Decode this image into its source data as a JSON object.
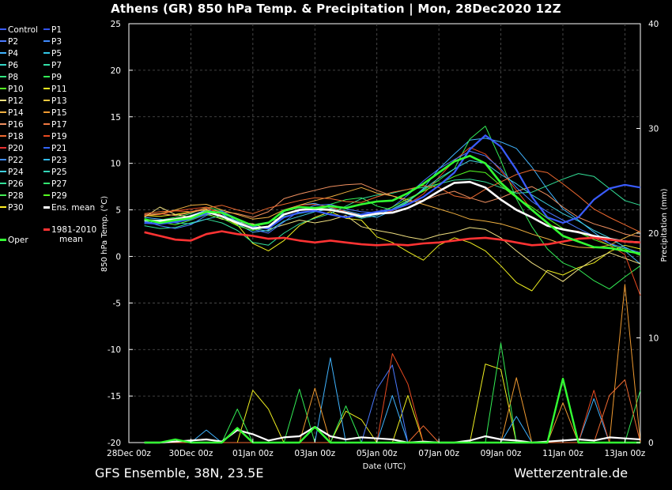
{
  "title": "Athens  (GR)  850 hPa Temp. & Precipitation | Mon, 28Dec2020 12Z",
  "footer_left": "GFS Ensemble, 38N, 23.5E",
  "footer_right": "Wetterzentrale.de",
  "legend": [
    {
      "label": "Control",
      "color": "#3a5cff"
    },
    {
      "label": "P1",
      "color": "#3355ee"
    },
    {
      "label": "P2",
      "color": "#4a7aff"
    },
    {
      "label": "P3",
      "color": "#3f8cff"
    },
    {
      "label": "P4",
      "color": "#40b4ff"
    },
    {
      "label": "P5",
      "color": "#33c8e8"
    },
    {
      "label": "P6",
      "color": "#33d6c8"
    },
    {
      "label": "P7",
      "color": "#33e0a8"
    },
    {
      "label": "P8",
      "color": "#33e880"
    },
    {
      "label": "P9",
      "color": "#33ee55"
    },
    {
      "label": "P10",
      "color": "#55ff22"
    },
    {
      "label": "P11",
      "color": "#f0f020"
    },
    {
      "label": "P12",
      "color": "#f0e080"
    },
    {
      "label": "P13",
      "color": "#f0c840"
    },
    {
      "label": "P14",
      "color": "#f0b040"
    },
    {
      "label": "P15",
      "color": "#f09a30"
    },
    {
      "label": "P16",
      "color": "#f09060"
    },
    {
      "label": "P17",
      "color": "#f07840"
    },
    {
      "label": "P18",
      "color": "#f06a30"
    },
    {
      "label": "P19",
      "color": "#e84a20"
    },
    {
      "label": "P20",
      "color": "#e83030"
    },
    {
      "label": "P21",
      "color": "#3366ff"
    },
    {
      "label": "P22",
      "color": "#3f8cff"
    },
    {
      "label": "P23",
      "color": "#33bbee"
    },
    {
      "label": "P24",
      "color": "#40d0e0"
    },
    {
      "label": "P25",
      "color": "#33d6b8"
    },
    {
      "label": "P26",
      "color": "#33e098"
    },
    {
      "label": "P27",
      "color": "#33e870"
    },
    {
      "label": "P28",
      "color": "#44ee55"
    },
    {
      "label": "P29",
      "color": "#55ff22"
    },
    {
      "label": "P30",
      "color": "#ffee22"
    },
    {
      "label": "Ens. mean",
      "color": "#ffffff"
    },
    {
      "label": "Oper",
      "color": "#33ff33"
    },
    {
      "label": "1981-2010 mean",
      "color": "#ff3333"
    }
  ],
  "chart_data": {
    "type": "line",
    "y_left": {
      "label": "850 hPa Temp. (°C)",
      "lim": [
        -20,
        25
      ],
      "ticks": [
        "25",
        "20",
        "15",
        "10",
        "5",
        "0",
        "-5",
        "-10",
        "-15",
        "-20"
      ]
    },
    "y_right": {
      "label": "Precipitation (mm)",
      "lim": [
        0,
        40
      ],
      "ticks": [
        "40",
        "30",
        "20",
        "10",
        "0"
      ]
    },
    "x": {
      "label": "Date (UTC)",
      "lim": [
        0,
        16.5
      ],
      "ticks": [
        "28Dec 00z",
        "30Dec 00z",
        "01Jan 00z",
        "03Jan 00z",
        "05Jan 00z",
        "07Jan 00z",
        "09Jan 00z",
        "11Jan 00z",
        "13Jan 00z"
      ],
      "tick_pos": [
        0,
        2,
        4,
        6,
        8,
        10,
        12,
        14,
        16
      ]
    },
    "grid": true,
    "x_days": [
      0.5,
      1,
      1.5,
      2,
      2.5,
      3,
      3.5,
      4,
      4.5,
      5,
      5.5,
      6,
      6.5,
      7,
      7.5,
      8,
      8.5,
      9,
      9.5,
      10,
      10.5,
      11,
      11.5,
      12,
      12.5,
      13,
      13.5,
      14,
      14.5,
      15,
      15.5,
      16,
      16.5
    ],
    "temp_series": [
      {
        "name": "Ens. mean",
        "color": "#ffffff",
        "width": 2.6,
        "values": [
          3.9,
          3.8,
          4.0,
          4.3,
          4.8,
          4.3,
          3.6,
          3.0,
          3.2,
          4.5,
          5.0,
          5.1,
          5.0,
          4.7,
          4.3,
          4.6,
          4.7,
          5.2,
          6.0,
          7.0,
          7.9,
          8.0,
          7.4,
          6.1,
          5.0,
          4.2,
          3.3,
          2.9,
          2.6,
          2.2,
          1.9,
          1.6,
          1.5
        ]
      },
      {
        "name": "1981-2010 mean",
        "color": "#ff3333",
        "width": 2.6,
        "values": [
          2.6,
          2.2,
          1.8,
          1.7,
          2.4,
          2.7,
          2.4,
          2.2,
          1.9,
          2.0,
          1.7,
          1.5,
          1.7,
          1.5,
          1.3,
          1.2,
          1.3,
          1.2,
          1.4,
          1.5,
          1.7,
          1.9,
          2.0,
          1.8,
          1.5,
          1.2,
          1.3,
          1.6,
          1.9,
          2.0,
          1.8,
          1.6,
          1.5
        ]
      },
      {
        "name": "Oper",
        "color": "#33ff33",
        "width": 2.6,
        "values": [
          4.0,
          3.6,
          3.9,
          4.1,
          4.8,
          4.7,
          4.0,
          3.3,
          3.6,
          4.9,
          5.3,
          5.2,
          5.4,
          5.2,
          5.6,
          5.9,
          6.0,
          6.8,
          7.8,
          9.0,
          10.2,
          10.8,
          10.0,
          7.9,
          6.4,
          5.0,
          3.6,
          2.2,
          1.6,
          1.0,
          0.9,
          0.6,
          0.3
        ]
      },
      {
        "name": "Control",
        "color": "#3a5cff",
        "width": 2.2,
        "values": [
          3.6,
          3.5,
          3.7,
          4.0,
          4.6,
          4.8,
          4.0,
          3.2,
          3.0,
          4.2,
          4.7,
          4.9,
          4.5,
          4.2,
          4.5,
          4.8,
          5.0,
          5.6,
          6.4,
          7.6,
          9.0,
          11.5,
          13.0,
          11.8,
          9.3,
          6.4,
          4.2,
          3.6,
          4.2,
          6.1,
          7.3,
          7.7,
          7.4
        ]
      },
      {
        "name": "P4",
        "color": "#40b4ff",
        "width": 1,
        "values": [
          4.2,
          4.0,
          3.8,
          4.4,
          5.0,
          4.6,
          3.5,
          2.6,
          2.8,
          4.8,
          5.5,
          5.7,
          5.2,
          4.9,
          4.5,
          4.2,
          4.9,
          5.8,
          7.3,
          9.4,
          11.0,
          12.5,
          12.7,
          12.3,
          11.6,
          9.6,
          7.2,
          5.1,
          3.9,
          2.6,
          1.4,
          0.6,
          -0.8
        ]
      },
      {
        "name": "P9",
        "color": "#33ee55",
        "width": 1,
        "values": [
          3.7,
          3.9,
          4.2,
          4.6,
          5.3,
          4.9,
          3.9,
          3.4,
          3.7,
          4.3,
          4.6,
          4.9,
          5.6,
          6.1,
          6.3,
          5.4,
          5.0,
          5.9,
          7.1,
          8.2,
          9.4,
          12.6,
          14.0,
          10.3,
          6.2,
          3.2,
          0.8,
          -0.7,
          -1.4,
          -2.6,
          -3.5,
          -2.2,
          -1.0
        ]
      },
      {
        "name": "P11",
        "color": "#f0f020",
        "width": 1,
        "values": [
          4.4,
          4.3,
          4.5,
          4.8,
          5.0,
          4.3,
          3.4,
          1.4,
          0.6,
          1.7,
          3.3,
          4.2,
          4.8,
          4.1,
          3.9,
          2.1,
          1.5,
          0.5,
          -0.4,
          1.2,
          2.0,
          1.5,
          0.6,
          -1.0,
          -2.8,
          -3.7,
          -1.5,
          -2.0,
          -1.2,
          -0.7,
          0.5,
          1.2,
          0.8
        ]
      },
      {
        "name": "P16",
        "color": "#f09060",
        "width": 1,
        "values": [
          4.5,
          4.6,
          4.4,
          4.7,
          5.1,
          4.8,
          4.6,
          4.2,
          4.8,
          6.2,
          6.7,
          7.1,
          7.5,
          7.7,
          7.8,
          7.1,
          6.5,
          5.9,
          6.0,
          6.6,
          7.0,
          6.3,
          5.8,
          6.3,
          7.0,
          7.5,
          6.6,
          5.3,
          4.2,
          3.5,
          3.0,
          2.4,
          2.1
        ]
      },
      {
        "name": "P19",
        "color": "#e84a20",
        "width": 1,
        "values": [
          4.4,
          4.5,
          4.9,
          5.1,
          5.3,
          4.4,
          3.8,
          3.2,
          3.6,
          4.9,
          5.5,
          5.6,
          5.3,
          4.8,
          4.4,
          4.5,
          4.9,
          5.6,
          6.7,
          8.5,
          10.3,
          11.7,
          11.0,
          9.2,
          7.1,
          5.0,
          3.5,
          2.9,
          2.7,
          2.0,
          1.2,
          0.2,
          -4.2
        ]
      },
      {
        "name": "P26",
        "color": "#33e098",
        "width": 1,
        "values": [
          3.3,
          3.0,
          3.1,
          3.6,
          4.0,
          3.6,
          2.8,
          1.5,
          1.2,
          2.5,
          3.5,
          4.1,
          4.6,
          5.4,
          6.2,
          6.6,
          6.8,
          7.2,
          7.4,
          7.8,
          8.2,
          8.3,
          8.0,
          7.4,
          6.8,
          6.9,
          7.6,
          8.3,
          8.9,
          8.6,
          7.3,
          6.0,
          5.5
        ]
      },
      {
        "name": "P12",
        "color": "#f0e080",
        "width": 1,
        "values": [
          4.2,
          5.3,
          4.5,
          4.2,
          4.6,
          4.0,
          3.7,
          3.5,
          2.9,
          3.4,
          3.9,
          3.6,
          3.9,
          4.4,
          3.2,
          2.8,
          2.5,
          2.1,
          1.8,
          2.3,
          2.6,
          3.1,
          2.9,
          2.0,
          0.6,
          -0.7,
          -1.7,
          -2.7,
          -1.4,
          -0.3,
          0.4,
          -0.2,
          -0.8
        ]
      },
      {
        "name": "P2",
        "color": "#4a7aff",
        "width": 1,
        "values": [
          3.8,
          3.3,
          3.0,
          3.4,
          4.4,
          4.9,
          3.7,
          2.9,
          2.5,
          3.7,
          4.9,
          5.5,
          5.6,
          5.1,
          4.8,
          4.7,
          5.3,
          6.6,
          8.1,
          9.4,
          10.4,
          11.3,
          10.8,
          9.4,
          7.4,
          5.9,
          4.8,
          3.9,
          3.0,
          2.2,
          1.4,
          0.9,
          0.4
        ]
      },
      {
        "name": "P14",
        "color": "#f0b040",
        "width": 1,
        "values": [
          4.3,
          4.6,
          5.0,
          5.5,
          5.6,
          5.0,
          4.5,
          4.0,
          4.2,
          5.0,
          5.5,
          6.0,
          6.4,
          6.9,
          7.4,
          6.8,
          6.5,
          6.1,
          5.6,
          5.1,
          4.6,
          4.0,
          3.8,
          3.5,
          3.0,
          2.4,
          1.9,
          1.3,
          1.0,
          0.9,
          1.2,
          2.0,
          2.7
        ]
      },
      {
        "name": "P24",
        "color": "#40d0e0",
        "width": 1,
        "values": [
          3.5,
          3.9,
          3.6,
          3.5,
          4.0,
          4.4,
          3.8,
          3.0,
          2.7,
          3.8,
          4.3,
          4.8,
          5.1,
          4.6,
          4.1,
          4.4,
          5.1,
          6.0,
          7.2,
          8.4,
          9.4,
          10.3,
          10.0,
          8.8,
          7.8,
          6.6,
          5.6,
          4.6,
          3.8,
          2.8,
          2.0,
          1.0,
          0.2
        ]
      },
      {
        "name": "P29",
        "color": "#55ff22",
        "width": 1,
        "values": [
          4.0,
          3.7,
          3.4,
          3.9,
          4.5,
          4.1,
          3.3,
          2.8,
          3.2,
          4.6,
          5.0,
          5.2,
          5.1,
          4.7,
          4.2,
          4.6,
          5.3,
          6.2,
          7.0,
          7.8,
          8.6,
          9.2,
          9.0,
          7.6,
          6.3,
          5.3,
          4.1,
          3.0,
          2.6,
          1.8,
          1.2,
          0.8,
          0.1
        ]
      },
      {
        "name": "P18",
        "color": "#f06a30",
        "width": 1,
        "values": [
          4.6,
          4.8,
          4.9,
          4.8,
          5.2,
          5.5,
          5.0,
          4.6,
          5.2,
          5.6,
          6.0,
          6.3,
          6.2,
          5.9,
          5.8,
          6.4,
          6.9,
          7.2,
          7.6,
          7.4,
          6.5,
          6.2,
          7.2,
          8.0,
          8.8,
          9.3,
          9.0,
          7.8,
          6.5,
          5.1,
          4.2,
          3.4,
          2.6
        ]
      }
    ],
    "precip_series": [
      {
        "name": "Ens. mean",
        "color": "#ffffff",
        "width": 2.2,
        "values": [
          0,
          0,
          0.1,
          0.2,
          0.3,
          0.1,
          1.2,
          0.8,
          0.2,
          0.5,
          0.6,
          1.5,
          0.6,
          0.3,
          0.5,
          0.4,
          0.3,
          0.0,
          0.1,
          0.0,
          0.0,
          0.2,
          0.6,
          0.3,
          0.2,
          0.0,
          0.1,
          0.2,
          0.3,
          0.2,
          0.5,
          0.4,
          0.3
        ]
      },
      {
        "name": "Oper",
        "color": "#33ff33",
        "width": 2.4,
        "values": [
          0,
          0,
          0.3,
          0,
          0,
          0,
          1.4,
          0,
          0,
          0,
          0,
          1.5,
          0,
          0,
          0,
          0,
          0,
          0,
          0,
          0,
          0,
          0,
          0,
          0,
          0,
          0,
          0,
          6.1,
          0,
          0,
          0,
          0,
          0
        ]
      },
      {
        "name": "P11",
        "color": "#f0f020",
        "width": 1,
        "values": [
          0,
          0,
          0,
          0,
          0,
          0,
          0,
          5.0,
          3.2,
          0,
          0,
          0,
          0,
          3.0,
          2.2,
          0,
          0,
          4.5,
          0,
          0,
          0,
          0,
          7.5,
          7.0,
          0,
          0,
          0,
          0,
          0,
          0,
          0,
          0,
          0
        ]
      },
      {
        "name": "P9",
        "color": "#33ee55",
        "width": 1,
        "values": [
          0,
          0,
          0,
          0,
          0,
          0,
          3.2,
          0,
          0,
          0,
          5.1,
          0,
          0,
          3.5,
          0,
          0,
          0,
          0,
          0,
          0,
          0,
          0,
          0,
          9.5,
          0,
          0,
          0,
          0,
          0,
          0,
          0,
          0,
          5.0
        ]
      },
      {
        "name": "P4",
        "color": "#40b4ff",
        "width": 1,
        "values": [
          0,
          0,
          0,
          0,
          1.2,
          0,
          0,
          0,
          0,
          0,
          0,
          0,
          8.1,
          0,
          0,
          0,
          4.5,
          0,
          0,
          0,
          0,
          0,
          0,
          0,
          2.5,
          0,
          0,
          0,
          0,
          4.2,
          0,
          0,
          0
        ]
      },
      {
        "name": "P2",
        "color": "#4a7aff",
        "width": 1,
        "values": [
          0,
          0,
          0,
          0,
          0,
          0,
          0,
          0,
          0,
          0,
          0,
          0,
          0,
          0,
          0,
          5.1,
          7.4,
          0,
          0,
          0,
          0,
          0,
          0,
          0,
          0,
          0,
          0,
          0,
          0,
          0,
          0,
          0,
          0
        ]
      },
      {
        "name": "P19",
        "color": "#e84a20",
        "width": 1,
        "values": [
          0,
          0,
          0,
          0,
          0,
          0,
          0,
          0,
          0,
          0,
          0,
          0,
          0,
          0,
          0,
          0,
          8.5,
          5.6,
          0,
          0,
          0,
          0,
          0,
          0,
          0,
          0,
          0,
          0,
          0,
          5.0,
          0,
          0,
          0
        ]
      },
      {
        "name": "P15",
        "color": "#f09a30",
        "width": 1,
        "values": [
          0,
          0,
          0,
          0,
          0,
          0,
          0,
          0,
          0,
          0,
          0,
          5.2,
          0,
          0,
          0,
          0,
          0,
          0,
          0,
          0,
          0,
          0,
          0,
          0,
          6.2,
          0,
          0,
          3.8,
          0,
          0,
          0,
          15.1,
          0
        ]
      },
      {
        "name": "P18",
        "color": "#f06a30",
        "width": 1,
        "values": [
          0,
          0,
          0,
          0,
          0,
          0,
          0,
          0,
          0,
          0,
          0,
          0,
          0,
          0,
          0,
          0,
          0,
          0,
          1.6,
          0,
          0,
          0,
          0,
          0,
          0,
          0,
          0,
          0,
          0,
          0,
          4.5,
          6.0,
          0
        ]
      }
    ],
    "annotations": []
  }
}
